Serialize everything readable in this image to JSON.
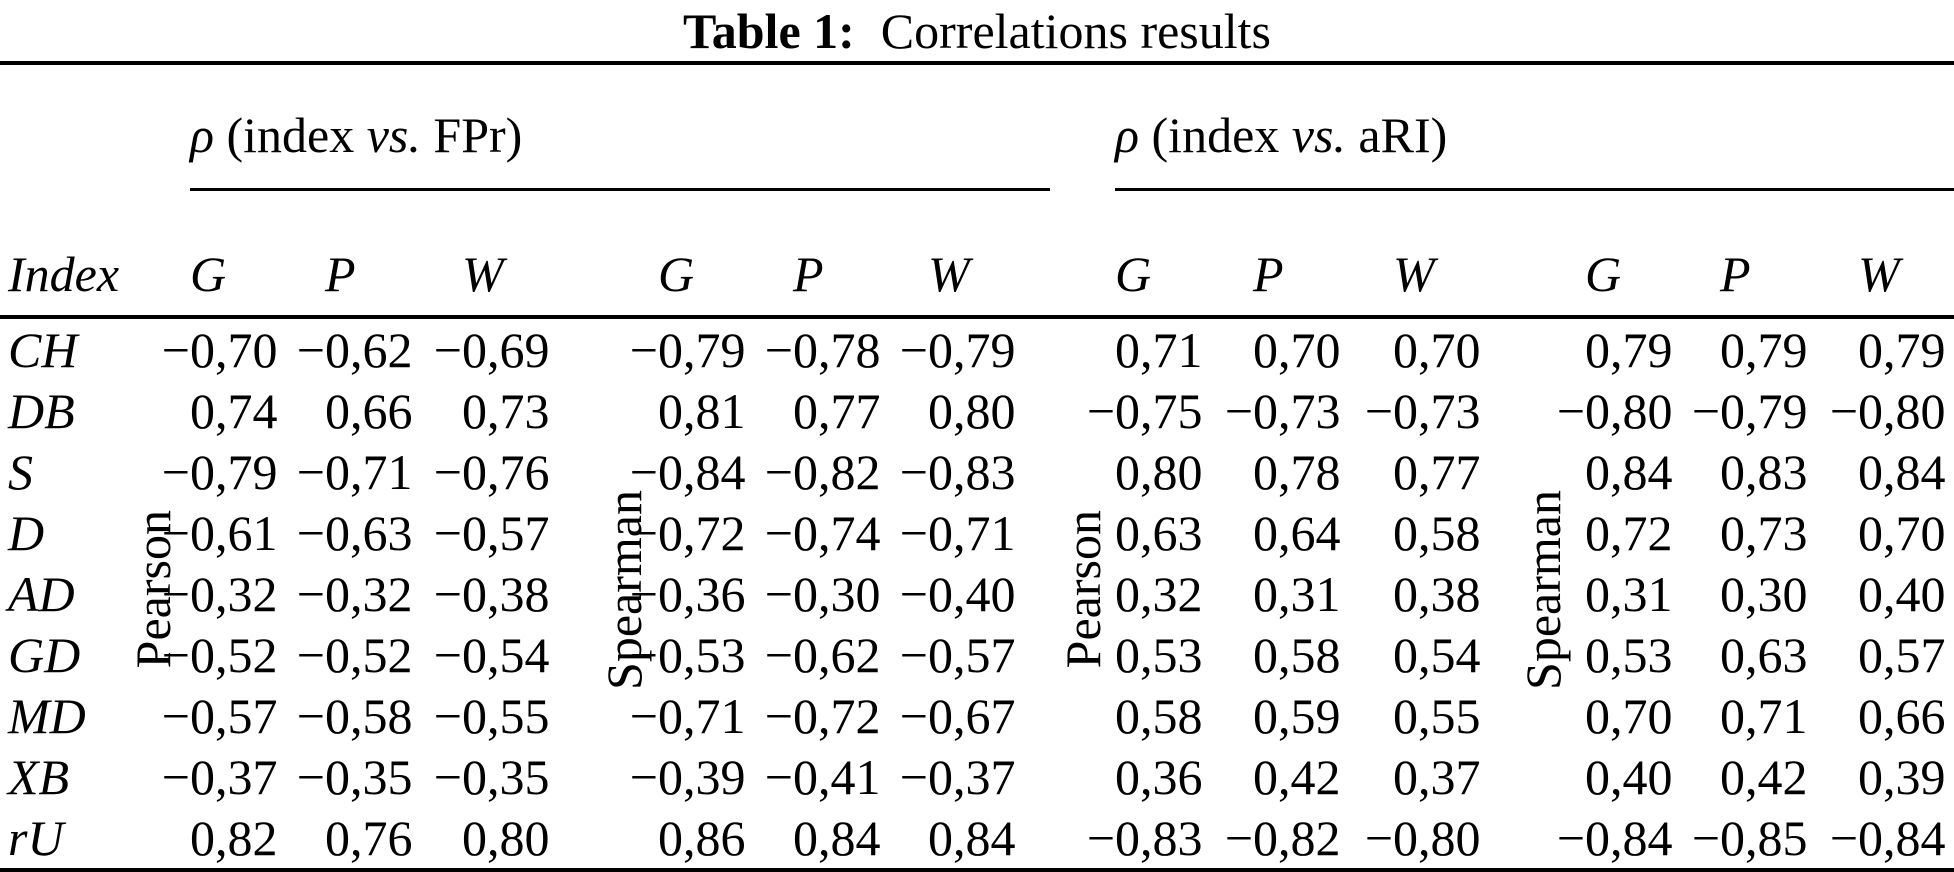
{
  "title": {
    "label": "Table 1:",
    "text": "Correlations results"
  },
  "table": {
    "index_header": "Index",
    "groups": [
      {
        "symbol": "ρ",
        "mid": " (index ",
        "vs": "vs.",
        "end": " FPr)"
      },
      {
        "symbol": "ρ",
        "mid": " (index ",
        "vs": "vs.",
        "end": " aRI)"
      }
    ],
    "blocks": [
      {
        "method": "Pearson",
        "cols": [
          "G",
          "P",
          "W"
        ]
      },
      {
        "method": "Spearman",
        "cols": [
          "G",
          "P",
          "W"
        ]
      },
      {
        "method": "Pearson",
        "cols": [
          "G",
          "P",
          "W"
        ]
      },
      {
        "method": "Spearman",
        "cols": [
          "G",
          "P",
          "W"
        ]
      }
    ],
    "rows": [
      {
        "index": "CH",
        "values": [
          "−0,70",
          "−0,62",
          "−0,69",
          "−0,79",
          "−0,78",
          "−0,79",
          "0,71",
          "0,70",
          "0,70",
          "0,79",
          "0,79",
          "0,79"
        ]
      },
      {
        "index": "DB",
        "values": [
          "0,74",
          "0,66",
          "0,73",
          "0,81",
          "0,77",
          "0,80",
          "−0,75",
          "−0,73",
          "−0,73",
          "−0,80",
          "−0,79",
          "−0,80"
        ]
      },
      {
        "index": "S",
        "values": [
          "−0,79",
          "−0,71",
          "−0,76",
          "−0,84",
          "−0,82",
          "−0,83",
          "0,80",
          "0,78",
          "0,77",
          "0,84",
          "0,83",
          "0,84"
        ]
      },
      {
        "index": "D",
        "values": [
          "−0,61",
          "−0,63",
          "−0,57",
          "−0,72",
          "−0,74",
          "−0,71",
          "0,63",
          "0,64",
          "0,58",
          "0,72",
          "0,73",
          "0,70"
        ]
      },
      {
        "index": "AD",
        "values": [
          "−0,32",
          "−0,32",
          "−0,38",
          "−0,36",
          "−0,30",
          "−0,40",
          "0,32",
          "0,31",
          "0,38",
          "0,31",
          "0,30",
          "0,40"
        ]
      },
      {
        "index": "GD",
        "values": [
          "−0,52",
          "−0,52",
          "−0,54",
          "−0,53",
          "−0,62",
          "−0,57",
          "0,53",
          "0,58",
          "0,54",
          "0,53",
          "0,63",
          "0,57"
        ]
      },
      {
        "index": "MD",
        "values": [
          "−0,57",
          "−0,58",
          "−0,55",
          "−0,71",
          "−0,72",
          "−0,67",
          "0,58",
          "0,59",
          "0,55",
          "0,70",
          "0,71",
          "0,66"
        ]
      },
      {
        "index": "XB",
        "values": [
          "−0,37",
          "−0,35",
          "−0,35",
          "−0,39",
          "−0,41",
          "−0,37",
          "0,36",
          "0,42",
          "0,37",
          "0,40",
          "0,42",
          "0,39"
        ]
      },
      {
        "index": "rU",
        "values": [
          "0,82",
          "0,76",
          "0,80",
          "0,86",
          "0,84",
          "0,84",
          "−0,83",
          "−0,82",
          "−0,80",
          "−0,84",
          "−0,85",
          "−0,84"
        ]
      }
    ]
  }
}
